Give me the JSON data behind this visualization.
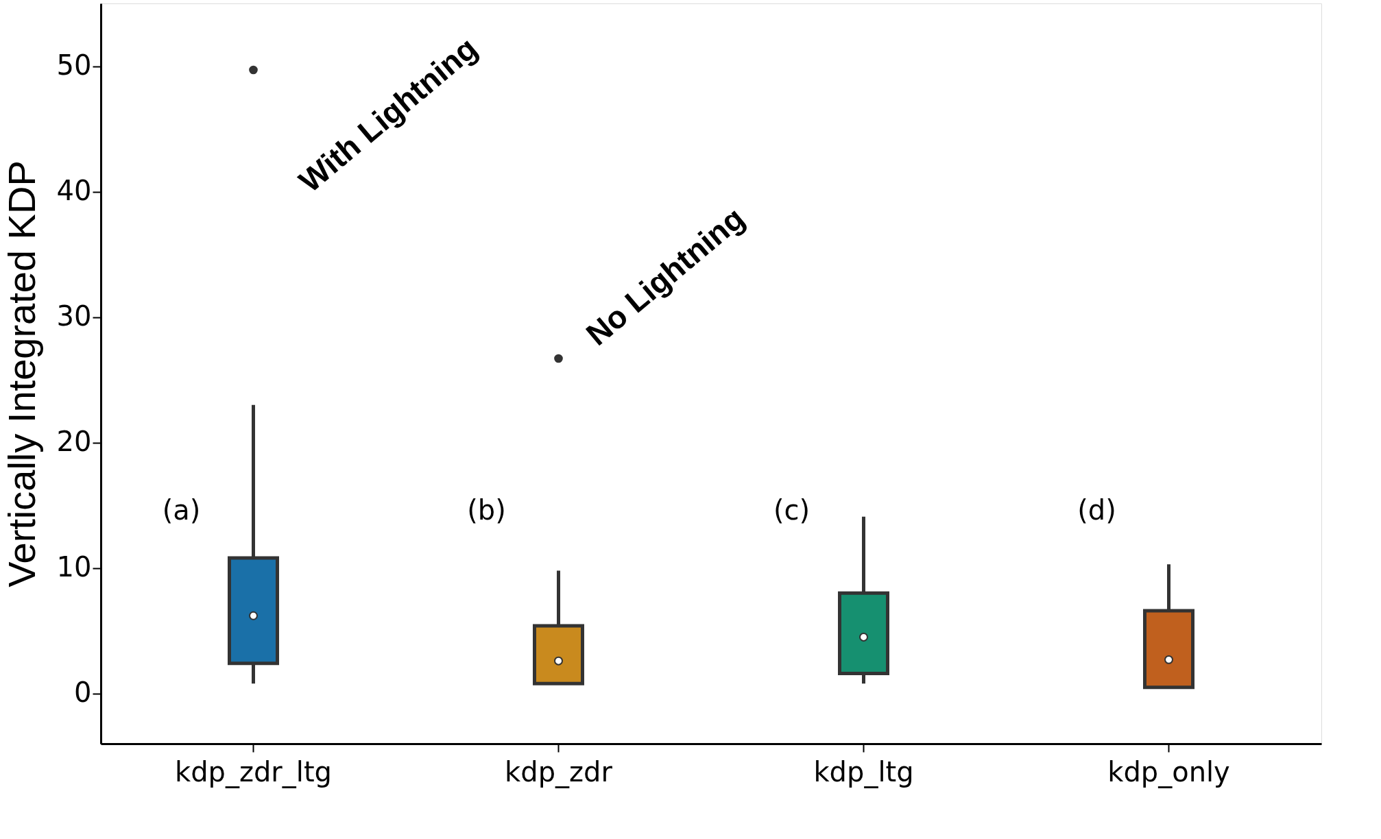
{
  "chart_data": {
    "type": "box",
    "ylabel": "Vertically Integrated KDP",
    "categories": [
      "kdp_zdr_ltg",
      "kdp_zdr",
      "kdp_ltg",
      "kdp_only"
    ],
    "colors": [
      "#1a70a8",
      "#c98a1e",
      "#169070",
      "#c0601e"
    ],
    "boxes": [
      {
        "low": 0.8,
        "q1": 2.4,
        "median": 6.2,
        "q3": 10.8,
        "high": 23,
        "outliers": [
          49.7
        ]
      },
      {
        "low": 0.8,
        "q1": 0.8,
        "median": 2.6,
        "q3": 5.4,
        "high": 9.8,
        "outliers": [
          26.7
        ]
      },
      {
        "low": 0.8,
        "q1": 1.6,
        "median": 4.5,
        "q3": 8.0,
        "high": 14.1
      },
      {
        "low": 0.5,
        "q1": 0.5,
        "median": 2.7,
        "q3": 6.6,
        "high": 10.3
      }
    ],
    "ylim": [
      -4,
      55
    ],
    "yticks": [
      0,
      10,
      20,
      30,
      40,
      50
    ],
    "grid": false,
    "annotations": [
      "(a)",
      "(b)",
      "(c)",
      "(d)",
      "With Lightning",
      "No Lightning"
    ]
  }
}
